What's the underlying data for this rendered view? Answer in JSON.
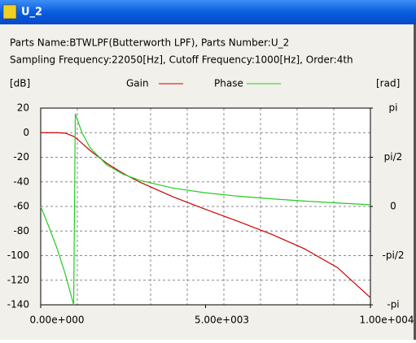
{
  "window": {
    "title": "U_2"
  },
  "info": {
    "line1": "Parts Name:BTWLPF(Butterworth LPF), Parts Number:U_2",
    "line2": "Sampling Frequency:22050[Hz], Cutoff Frequency:1000[Hz], Order:4th"
  },
  "chart_data": {
    "type": "line",
    "ylabel": "[dB]",
    "y2label": "[rad]",
    "x": [
      0,
      250,
      500,
      750,
      1000,
      1050,
      1250,
      1500,
      2000,
      2500,
      3000,
      4000,
      5000,
      6000,
      7000,
      8000,
      9000,
      10000
    ],
    "series": [
      {
        "name": "Gain",
        "color": "#cc0000",
        "axis": "y",
        "values": [
          0,
          0,
          -0.016,
          -0.405,
          -3.01,
          -3.955,
          -8.541,
          -14.54,
          -24.81,
          -33.11,
          -40.15,
          -52.0,
          -62.39,
          -72.29,
          -82.62,
          -94.42,
          -109.72,
          -134.2
        ]
      },
      {
        "name": "Phase",
        "color": "#22cc22",
        "axis": "y2",
        "values": [
          0,
          -0.655,
          -1.3534,
          -2.1766,
          -3.1416,
          2.9593,
          2.3592,
          1.8708,
          1.3303,
          1.0311,
          0.8351,
          0.5892,
          0.4355,
          0.327,
          0.2426,
          0.1727,
          0.1111,
          0.0549
        ]
      }
    ],
    "xlim": [
      0,
      10000
    ],
    "xticks": [
      {
        "value": 0,
        "label": "0.00e+000"
      },
      {
        "value": 5000,
        "label": "5.00e+003"
      },
      {
        "value": 10000,
        "label": "1.00e+004"
      }
    ],
    "ylim": [
      -140,
      20
    ],
    "yticks": [
      20,
      0,
      -20,
      -40,
      -60,
      -80,
      -100,
      -120,
      -140
    ],
    "y2lim": [
      -3.1416,
      3.1416
    ],
    "y2ticks": [
      {
        "value": 3.1416,
        "label": "pi"
      },
      {
        "value": 1.5708,
        "label": "pi/2"
      },
      0,
      {
        "value": -1.5708,
        "label": "-pi/2"
      },
      {
        "value": -3.1416,
        "label": "-pi"
      }
    ],
    "grid": true
  }
}
